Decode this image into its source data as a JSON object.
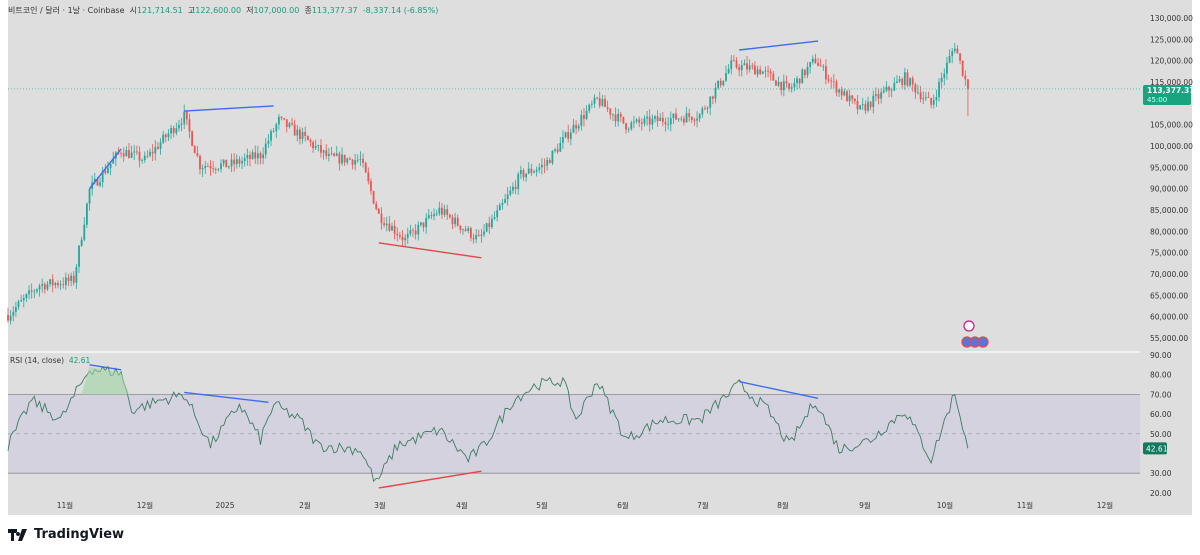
{
  "header": {
    "symbol": "비트코인 / 달러 · 1날 · Coinbase",
    "open_label": "시",
    "open": "121,714.51",
    "high_label": "고",
    "high": "122,600.00",
    "low_label": "저",
    "low": "107,000.00",
    "close_label": "종",
    "close": "113,377.37",
    "change": "-8,337.14 (-6.85%)"
  },
  "rsi": {
    "label": "RSI (14, close)",
    "value": "42.61"
  },
  "price_tag": {
    "price": "113,377.37",
    "countdown": "45:00"
  },
  "rsi_tag": "42.61",
  "brand": "TradingView",
  "colors": {
    "up": "#26a69a",
    "down": "#ef5350",
    "rsi_line": "#3e7a63",
    "rsi_band": "#d5d2df",
    "divergence_bull": "#e04848",
    "divergence_bear": "#3d6cf0",
    "background": "#dedede"
  },
  "icons": [
    "lightning-event-icon",
    "flag-event-icons"
  ],
  "chart_data": [
    {
      "type": "candlestick",
      "interval": "1D",
      "ylim": [
        53000,
        132000
      ],
      "yticks": [
        "130,000.00",
        "125,000.00",
        "120,000.00",
        "115,000.00",
        "105,000.00",
        "100,000.00",
        "95,000.00",
        "90,000.00",
        "85,000.00",
        "80,000.00",
        "75,000.00",
        "70,000.00",
        "65,000.00",
        "60,000.00",
        "55,000.00"
      ],
      "approx_closes": [
        [
          "2024-10-10",
          60400
        ],
        [
          "2024-10-22",
          67400
        ],
        [
          "2024-10-30",
          68000
        ],
        [
          "2024-11-04",
          68600
        ],
        [
          "2024-11-10",
          89700
        ],
        [
          "2024-11-22",
          99000
        ],
        [
          "2024-12-01",
          96700
        ],
        [
          "2024-12-16",
          107000
        ],
        [
          "2024-12-22",
          95500
        ],
        [
          "2025-01-02",
          95500
        ],
        [
          "2025-01-14",
          97900
        ],
        [
          "2025-01-21",
          106000
        ],
        [
          "2025-01-29",
          102600
        ],
        [
          "2025-02-09",
          97200
        ],
        [
          "2025-02-21",
          96700
        ],
        [
          "2025-02-28",
          83800
        ],
        [
          "2025-03-10",
          78000
        ],
        [
          "2025-03-23",
          85000
        ],
        [
          "2025-04-07",
          78000
        ],
        [
          "2025-04-15",
          85000
        ],
        [
          "2025-04-23",
          93200
        ],
        [
          "2025-05-02",
          95500
        ],
        [
          "2025-05-12",
          103700
        ],
        [
          "2025-05-22",
          110800
        ],
        [
          "2025-06-02",
          104900
        ],
        [
          "2025-06-15",
          106100
        ],
        [
          "2025-06-30",
          107300
        ],
        [
          "2025-07-12",
          119000
        ],
        [
          "2025-07-23",
          117800
        ],
        [
          "2025-08-03",
          113100
        ],
        [
          "2025-08-13",
          120200
        ],
        [
          "2025-08-20",
          114300
        ],
        [
          "2025-08-30",
          108400
        ],
        [
          "2025-09-07",
          112000
        ],
        [
          "2025-09-16",
          116000
        ],
        [
          "2025-09-26",
          109600
        ],
        [
          "2025-10-05",
          123700
        ],
        [
          "2025-10-10",
          113377.37
        ]
      ],
      "trendlines": [
        {
          "color": "bear",
          "points": [
            [
              "2024-11-10",
              90000
            ],
            [
              "2024-11-22",
              99300
            ]
          ]
        },
        {
          "color": "bear",
          "points": [
            [
              "2024-12-16",
              108200
            ],
            [
              "2025-01-19",
              109400
            ]
          ]
        },
        {
          "color": "bear",
          "points": [
            [
              "2025-07-15",
              122500
            ],
            [
              "2025-08-14",
              124600
            ]
          ]
        },
        {
          "color": "bull",
          "points": [
            [
              "2025-02-28",
              77300
            ],
            [
              "2025-04-08",
              73800
            ]
          ]
        }
      ]
    },
    {
      "type": "line",
      "name": "RSI (14, close)",
      "ylim": [
        17,
        92
      ],
      "yticks": [
        "90.00",
        "80.00",
        "70.00",
        "60.00",
        "50.00",
        "30.00",
        "20.00"
      ],
      "bands": [
        30,
        70
      ],
      "midline": 50,
      "values": [
        [
          "2024-10-10",
          44
        ],
        [
          "2024-10-19",
          67
        ],
        [
          "2024-10-30",
          57
        ],
        [
          "2024-11-10",
          83
        ],
        [
          "2024-11-22",
          81
        ],
        [
          "2024-11-26",
          62
        ],
        [
          "2024-12-07",
          67
        ],
        [
          "2024-12-16",
          70
        ],
        [
          "2024-12-26",
          44
        ],
        [
          "2025-01-06",
          65
        ],
        [
          "2025-01-14",
          47
        ],
        [
          "2025-01-19",
          65
        ],
        [
          "2025-01-29",
          57
        ],
        [
          "2025-02-05",
          44
        ],
        [
          "2025-02-21",
          42
        ],
        [
          "2025-02-27",
          25
        ],
        [
          "2025-03-07",
          44
        ],
        [
          "2025-03-23",
          52
        ],
        [
          "2025-04-03",
          37
        ],
        [
          "2025-04-09",
          44
        ],
        [
          "2025-04-20",
          67
        ],
        [
          "2025-04-29",
          75
        ],
        [
          "2025-05-09",
          77
        ],
        [
          "2025-05-14",
          57
        ],
        [
          "2025-05-22",
          77
        ],
        [
          "2025-06-02",
          47
        ],
        [
          "2025-06-15",
          57
        ],
        [
          "2025-06-30",
          57
        ],
        [
          "2025-07-15",
          75
        ],
        [
          "2025-07-26",
          62
        ],
        [
          "2025-08-03",
          44
        ],
        [
          "2025-08-13",
          67
        ],
        [
          "2025-08-22",
          42
        ],
        [
          "2025-09-03",
          47
        ],
        [
          "2025-09-16",
          62
        ],
        [
          "2025-09-26",
          37
        ],
        [
          "2025-10-05",
          71
        ],
        [
          "2025-10-10",
          42.61
        ]
      ],
      "trendlines": [
        {
          "color": "bear",
          "points": [
            [
              "2024-11-10",
              85
            ],
            [
              "2024-11-22",
              82.5
            ]
          ]
        },
        {
          "color": "bear",
          "points": [
            [
              "2024-12-16",
              71
            ],
            [
              "2025-01-17",
              66
            ]
          ]
        },
        {
          "color": "bear",
          "points": [
            [
              "2025-07-15",
              76.5
            ],
            [
              "2025-08-14",
              68
            ]
          ]
        },
        {
          "color": "bull",
          "points": [
            [
              "2025-02-28",
              22.5
            ],
            [
              "2025-04-08",
              31
            ]
          ]
        }
      ]
    }
  ],
  "xaxis": [
    "11월",
    "12월",
    "2025",
    "2월",
    "3월",
    "4월",
    "5월",
    "6월",
    "7월",
    "8월",
    "9월",
    "10월",
    "11월",
    "12월"
  ]
}
